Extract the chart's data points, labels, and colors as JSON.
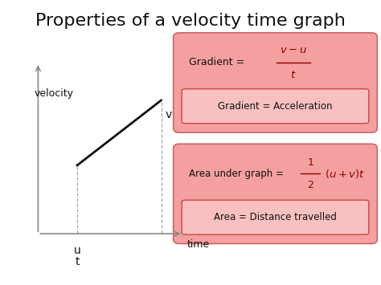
{
  "title": "Properties of a velocity time graph",
  "title_fontsize": 16,
  "bg_color": "#ffffff",
  "label_velocity": "velocity",
  "label_time": "time",
  "label_u": "u",
  "label_v": "v",
  "label_t": "t",
  "box1_bg": "#f5a0a0",
  "box1_border": "#cc6666",
  "box2_bg": "#f5a0a0",
  "box2_border": "#cc6666",
  "inner_box_bg": "#f8c0c0",
  "inner_box_border": "#cc4444",
  "axis_color": "#888888",
  "line_color": "#111111",
  "dash_color": "#aaaaaa",
  "text_color": "#111111",
  "formula_color": "#8B0000"
}
